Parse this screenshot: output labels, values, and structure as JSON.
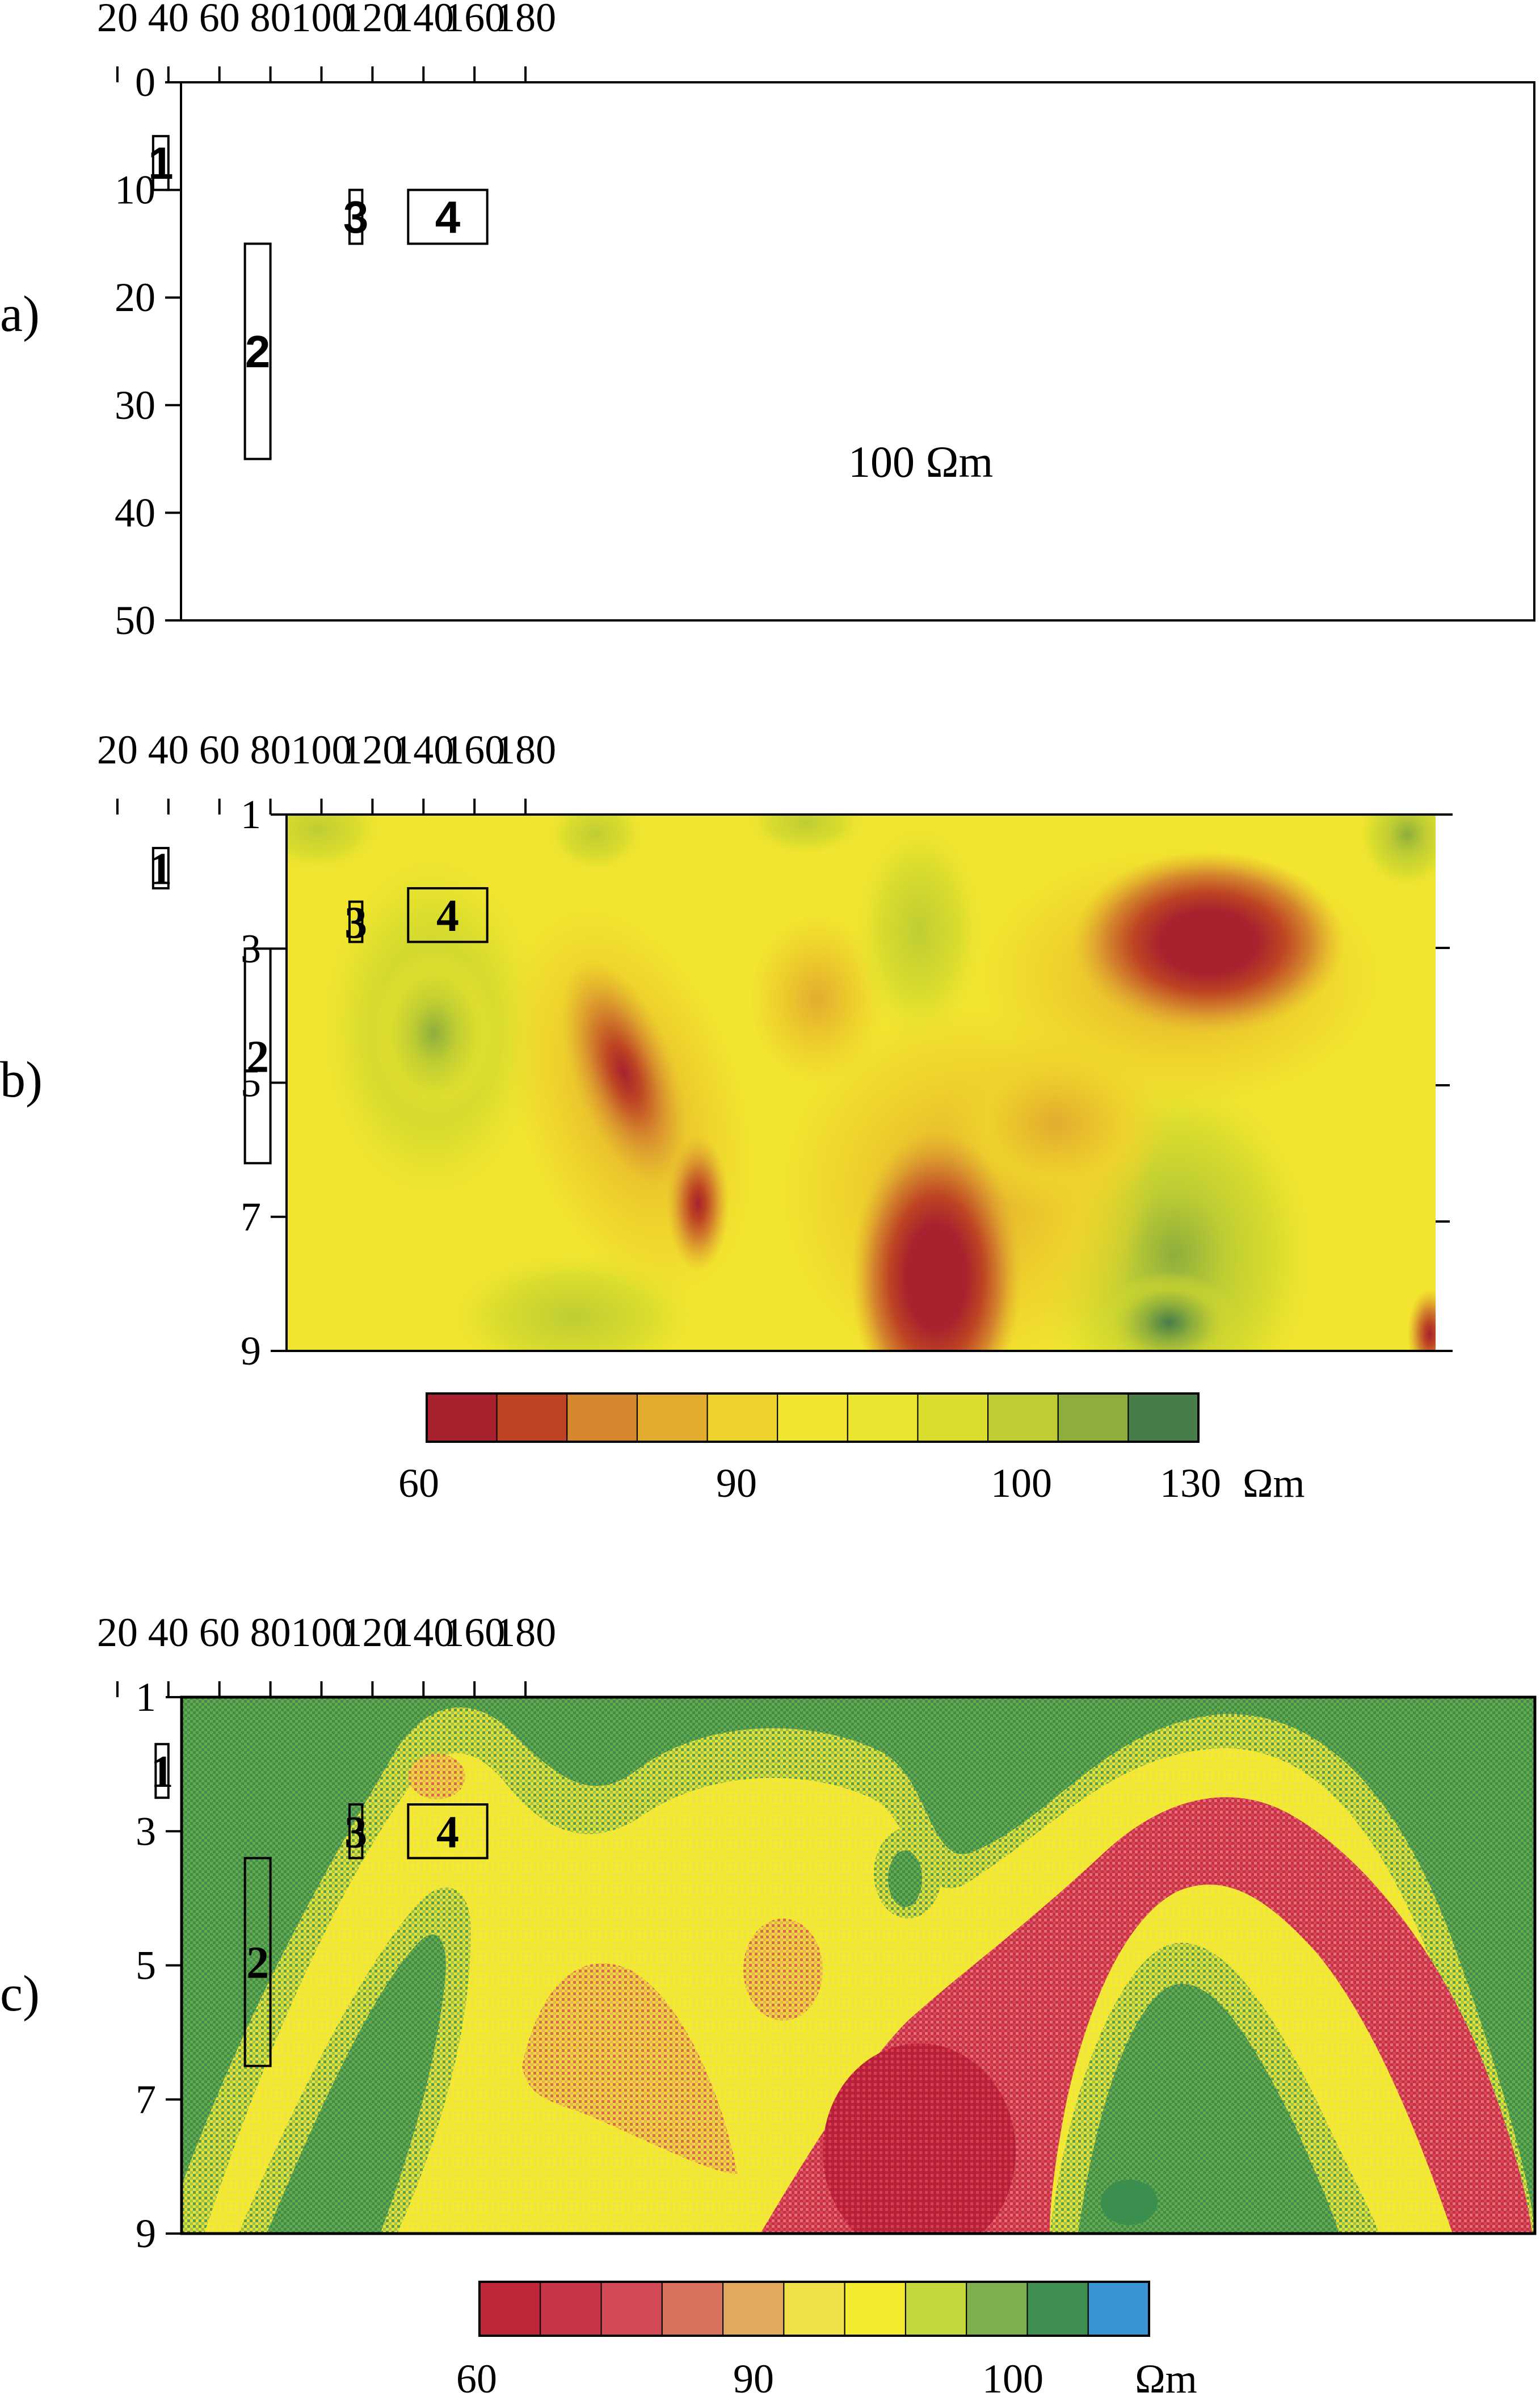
{
  "chart_data": [
    {
      "panel": "a)",
      "type": "heatmap",
      "x_ticks": [
        20,
        40,
        60,
        80,
        100,
        120,
        140,
        160,
        180
      ],
      "y_ticks": [
        0,
        10,
        20,
        30,
        40,
        50
      ],
      "xlim": [
        0,
        200
      ],
      "ylim": [
        0,
        50
      ],
      "background": "100 Ωm",
      "bodies": [
        {
          "label": "1",
          "x": [
            34,
            40
          ],
          "y": [
            5,
            10
          ]
        },
        {
          "label": "2",
          "x": [
            70,
            80
          ],
          "y": [
            15,
            35
          ]
        },
        {
          "label": "3",
          "x": [
            111,
            116
          ],
          "y": [
            10,
            15
          ]
        },
        {
          "label": "4",
          "x": [
            134,
            165
          ],
          "y": [
            10,
            15
          ]
        }
      ]
    },
    {
      "panel": "b)",
      "type": "heatmap",
      "x_ticks": [
        20,
        40,
        60,
        80,
        100,
        120,
        140,
        160,
        180
      ],
      "y_ticks": [
        1,
        3,
        5,
        7,
        9
      ],
      "xlim": [
        15,
        185
      ],
      "ylim": [
        1,
        9
      ],
      "colorbar": {
        "colors": [
          "#a7222e",
          "#bd4423",
          "#d5872d",
          "#e3ac2f",
          "#eed22c",
          "#f3e52f",
          "#ece52f",
          "#dbdd2e",
          "#bfcd33",
          "#8eae3c",
          "#467d49"
        ],
        "tick_labels": [
          "60",
          "90",
          "100",
          "130"
        ],
        "unit": "Ωm"
      },
      "bodies": [
        {
          "label": "1",
          "x": [
            34,
            40
          ],
          "y": [
            1.5,
            2.1
          ]
        },
        {
          "label": "2",
          "x": [
            70,
            80
          ],
          "y": [
            3,
            6.2
          ]
        },
        {
          "label": "3",
          "x": [
            111,
            116
          ],
          "y": [
            2.3,
            2.9
          ]
        },
        {
          "label": "4",
          "x": [
            134,
            165
          ],
          "y": [
            2.1,
            2.9
          ]
        }
      ]
    },
    {
      "panel": "c)",
      "type": "heatmap",
      "x_ticks": [
        20,
        40,
        60,
        80,
        100,
        120,
        140,
        160,
        180
      ],
      "y_ticks": [
        1,
        3,
        5,
        7,
        9
      ],
      "xlim": [
        0,
        200
      ],
      "ylim": [
        1,
        9
      ],
      "colorbar": {
        "colors": [
          "#c0263a",
          "#c93548",
          "#d14a55",
          "#d8705b",
          "#e2a85e",
          "#f0e04a",
          "#f3e92e",
          "#c4d73b",
          "#7fb04f",
          "#3f8f52",
          "#3a94d4"
        ],
        "tick_labels": [
          "60",
          "90",
          "100",
          "Ωm"
        ]
      },
      "bodies": [
        {
          "label": "1",
          "x": [
            35,
            40
          ],
          "y": [
            1.7,
            2.5
          ]
        },
        {
          "label": "2",
          "x": [
            70,
            80
          ],
          "y": [
            3.4,
            6.5
          ]
        },
        {
          "label": "3",
          "x": [
            111,
            116
          ],
          "y": [
            2.6,
            3.4
          ]
        },
        {
          "label": "4",
          "x": [
            134,
            165
          ],
          "y": [
            2.6,
            3.4
          ]
        }
      ]
    }
  ],
  "panel_labels": [
    "a)",
    "b)",
    "c)"
  ]
}
